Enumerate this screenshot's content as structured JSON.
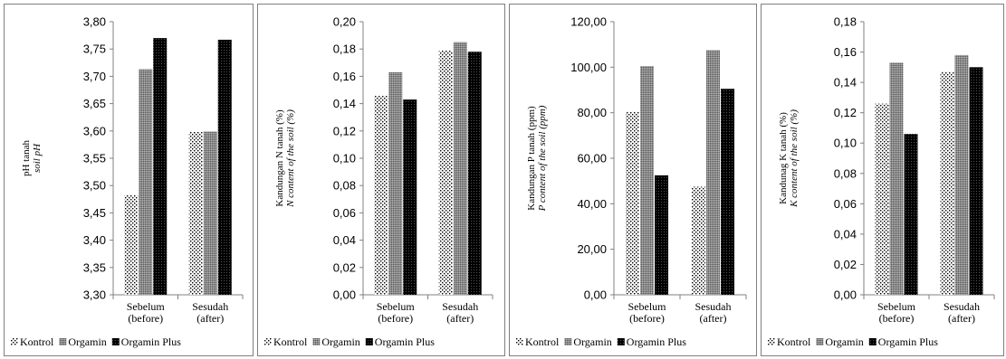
{
  "chart_data": [
    {
      "type": "bar",
      "categories": [
        [
          "Sebelum",
          "(before)"
        ],
        [
          "Sesudah",
          "(after)"
        ]
      ],
      "ylabel": "pH tanah",
      "ylabel_italic": "soil pH",
      "ylim": [
        3.3,
        3.8
      ],
      "yticks": [
        "3,30",
        "3,35",
        "3,40",
        "3,45",
        "3,50",
        "3,55",
        "3,60",
        "3,65",
        "3,70",
        "3,75",
        "3,80"
      ],
      "series": [
        {
          "name": "Kontrol",
          "values": [
            3.483,
            3.598
          ]
        },
        {
          "name": "Orgamin",
          "values": [
            3.713,
            3.599
          ]
        },
        {
          "name": "Orgamin Plus",
          "values": [
            3.77,
            3.767
          ]
        }
      ],
      "grid": false,
      "legend": "bottom"
    },
    {
      "type": "bar",
      "categories": [
        [
          "Sebelum",
          "(before)"
        ],
        [
          "Sesudah",
          "(after)"
        ]
      ],
      "ylabel": "Kandungan N tanah (%)",
      "ylabel_italic": "N content of the soil (%)",
      "ylim": [
        0,
        0.2
      ],
      "yticks": [
        "0,00",
        "0,02",
        "0,04",
        "0,06",
        "0,08",
        "0,10",
        "0,12",
        "0,14",
        "0,16",
        "0,18",
        "0,20"
      ],
      "series": [
        {
          "name": "Kontrol",
          "values": [
            0.146,
            0.179
          ]
        },
        {
          "name": "Orgamin",
          "values": [
            0.163,
            0.185
          ]
        },
        {
          "name": "Orgamin Plus",
          "values": [
            0.143,
            0.178
          ]
        }
      ],
      "grid": false,
      "legend": "bottom"
    },
    {
      "type": "bar",
      "categories": [
        [
          "Sebelum",
          "(before)"
        ],
        [
          "Sesudah",
          "(after)"
        ]
      ],
      "ylabel": "Kandungan P tanah (ppm)",
      "ylabel_italic": "P content of the soil (ppm)",
      "ylim": [
        0,
        120
      ],
      "yticks": [
        "0,00",
        "20,00",
        "40,00",
        "60,00",
        "80,00",
        "100,00",
        "120,00"
      ],
      "series": [
        {
          "name": "Kontrol",
          "values": [
            80.5,
            47.5
          ]
        },
        {
          "name": "Orgamin",
          "values": [
            100.5,
            107.5
          ]
        },
        {
          "name": "Orgamin Plus",
          "values": [
            52.5,
            90.5
          ]
        }
      ],
      "grid": false,
      "legend": "bottom"
    },
    {
      "type": "bar",
      "categories": [
        [
          "Sebelum",
          "(before)"
        ],
        [
          "Sesudah",
          "(after)"
        ]
      ],
      "ylabel": "Kandunag K tanah (%)",
      "ylabel_italic": "K content of the soil (%)",
      "ylim": [
        0,
        0.18
      ],
      "yticks": [
        "0,00",
        "0,02",
        "0,04",
        "0,06",
        "0,08",
        "0,10",
        "0,12",
        "0,14",
        "0,16",
        "0,18"
      ],
      "series": [
        {
          "name": "Kontrol",
          "values": [
            0.126,
            0.147
          ]
        },
        {
          "name": "Orgamin",
          "values": [
            0.153,
            0.158
          ]
        },
        {
          "name": "Orgamin Plus",
          "values": [
            0.106,
            0.15
          ]
        }
      ],
      "grid": false,
      "legend": "bottom"
    }
  ]
}
